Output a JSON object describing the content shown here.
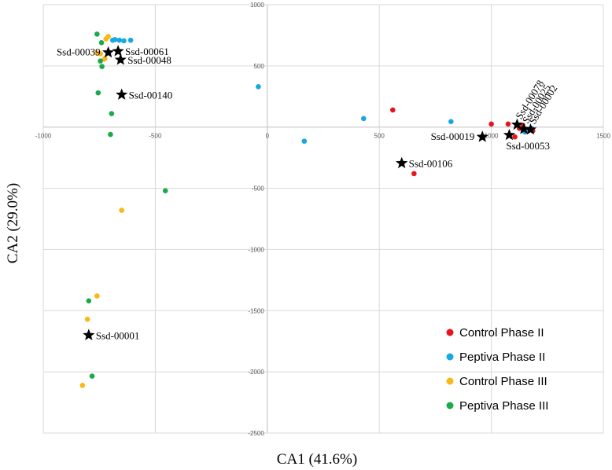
{
  "chart_data": {
    "type": "scatter",
    "xlabel": "CA1 (41.6%)",
    "ylabel": "CA2 (29.0%)",
    "xlim": [
      -1000,
      1500
    ],
    "ylim": [
      -2500,
      1000
    ],
    "xticks": [
      -1000,
      -500,
      0,
      500,
      1000,
      1500
    ],
    "yticks": [
      -2500,
      -2000,
      -1500,
      -1000,
      -500,
      0,
      500,
      1000
    ],
    "grid": true,
    "legend_position": "bottom-right",
    "colors": {
      "Control Phase II": "#e8141b",
      "Peptiva Phase II": "#17a8e0",
      "Control Phase III": "#fbb714",
      "Peptiva Phase III": "#1aaa4b"
    },
    "series": [
      {
        "name": "Control Phase II",
        "x": [
          560,
          1000,
          1075,
          1105,
          1125,
          1140,
          1160,
          1185,
          655
        ],
        "y": [
          140,
          25,
          25,
          -80,
          -10,
          15,
          -30,
          -30,
          -380
        ]
      },
      {
        "name": "Peptiva Phase II",
        "x": [
          -690,
          -680,
          -660,
          -640,
          -610,
          -40,
          430,
          820,
          165,
          1150,
          1165,
          1180
        ],
        "y": [
          710,
          715,
          710,
          705,
          710,
          330,
          70,
          45,
          -115,
          -40,
          -20,
          -10
        ]
      },
      {
        "name": "Control Phase III",
        "x": [
          -745,
          -720,
          -710,
          -725,
          -728,
          -760,
          -650,
          -760,
          -803,
          -825
        ],
        "y": [
          600,
          720,
          740,
          560,
          555,
          605,
          -680,
          -1380,
          -1570,
          -2110
        ]
      },
      {
        "name": "Peptiva Phase III",
        "x": [
          -760,
          -740,
          -745,
          -738,
          -755,
          -695,
          -700,
          -455,
          -797,
          -782
        ],
        "y": [
          760,
          690,
          540,
          495,
          280,
          110,
          -60,
          -520,
          -1420,
          -2035
        ]
      }
    ],
    "annotations": [
      {
        "label": "Ssd-00039",
        "x": -710,
        "y": 610,
        "side": "left"
      },
      {
        "label": "Ssd-00061",
        "x": -666,
        "y": 620,
        "side": "right"
      },
      {
        "label": "Ssd-00048",
        "x": -655,
        "y": 550,
        "side": "right"
      },
      {
        "label": "Ssd-00140",
        "x": -650,
        "y": 265,
        "side": "right"
      },
      {
        "label": "Ssd-00001",
        "x": -797,
        "y": -1700,
        "side": "right"
      },
      {
        "label": "Ssd-00106",
        "x": 600,
        "y": -295,
        "side": "right"
      },
      {
        "label": "Ssd-00019",
        "x": 960,
        "y": -80,
        "side": "left"
      },
      {
        "label": "Ssd-00053",
        "x": 1080,
        "y": -65,
        "side": "below"
      },
      {
        "label": "Ssd-00078",
        "x": 1115,
        "y": 20,
        "side": "rotated"
      },
      {
        "label": "Ssd-00025",
        "x": 1145,
        "y": -15,
        "side": "rotated"
      },
      {
        "label": "Ssd-00002",
        "x": 1175,
        "y": -20,
        "side": "rotated"
      }
    ]
  }
}
